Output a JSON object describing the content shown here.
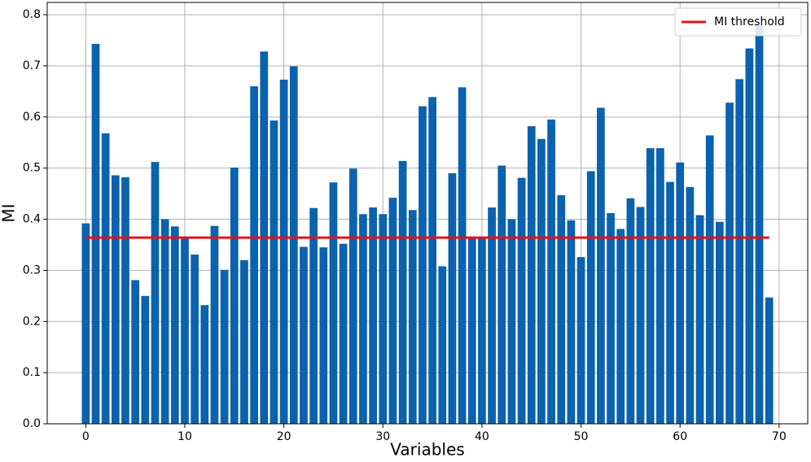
{
  "chart_data": {
    "type": "bar",
    "xlabel": "Variables",
    "ylabel": "MI",
    "color": "#0b62ae",
    "x": [
      0,
      1,
      2,
      3,
      4,
      5,
      6,
      7,
      8,
      9,
      10,
      11,
      12,
      13,
      14,
      15,
      16,
      17,
      18,
      19,
      20,
      21,
      22,
      23,
      24,
      25,
      26,
      27,
      28,
      29,
      30,
      31,
      32,
      33,
      34,
      35,
      36,
      37,
      38,
      39,
      40,
      41,
      42,
      43,
      44,
      45,
      46,
      47,
      48,
      49,
      50,
      51,
      52,
      53,
      54,
      55,
      56,
      57,
      58,
      59,
      60,
      61,
      62,
      63,
      64,
      65,
      66,
      67,
      68,
      69
    ],
    "values": [
      0.392,
      0.743,
      0.568,
      0.486,
      0.482,
      0.281,
      0.25,
      0.512,
      0.4,
      0.386,
      0.364,
      0.331,
      0.232,
      0.387,
      0.301,
      0.501,
      0.32,
      0.66,
      0.728,
      0.593,
      0.673,
      0.699,
      0.346,
      0.422,
      0.345,
      0.472,
      0.352,
      0.499,
      0.41,
      0.423,
      0.41,
      0.442,
      0.514,
      0.418,
      0.621,
      0.639,
      0.308,
      0.49,
      0.658,
      0.364,
      0.364,
      0.423,
      0.505,
      0.4,
      0.481,
      0.582,
      0.557,
      0.595,
      0.447,
      0.398,
      0.326,
      0.494,
      0.618,
      0.412,
      0.381,
      0.441,
      0.424,
      0.539,
      0.539,
      0.473,
      0.511,
      0.463,
      0.408,
      0.564,
      0.395,
      0.628,
      0.674,
      0.734,
      0.78,
      0.247
    ],
    "lines": [
      {
        "name": "MI threshold",
        "color": "#e8101a",
        "x": [
          0,
          69
        ],
        "values": [
          0.364,
          0.364
        ]
      }
    ],
    "xlim": [
      -3.89,
      72.89
    ],
    "ylim": [
      0,
      0.824
    ],
    "xticks": [
      0,
      10,
      20,
      30,
      40,
      50,
      60,
      70
    ],
    "yticks": [
      {
        "value": 0,
        "label": "0.0"
      },
      0.1,
      0.2,
      0.3,
      0.4,
      0.5,
      0.6,
      0.7,
      0.8
    ],
    "grid": true,
    "legend": "upper right"
  }
}
